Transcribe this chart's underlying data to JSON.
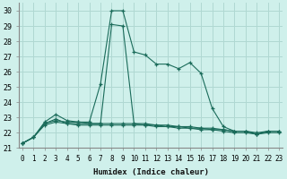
{
  "xlabel": "Humidex (Indice chaleur)",
  "bg_color": "#cff0eb",
  "grid_color": "#b0d8d2",
  "line_color": "#1a6b5a",
  "xlim": [
    0,
    23
  ],
  "ylim": [
    21,
    30.5
  ],
  "yticks": [
    21,
    22,
    23,
    24,
    25,
    26,
    27,
    28,
    29,
    30
  ],
  "xticks": [
    0,
    1,
    2,
    3,
    4,
    5,
    6,
    7,
    8,
    9,
    10,
    11,
    12,
    13,
    14,
    15,
    16,
    17,
    18,
    19,
    20,
    21,
    22,
    23
  ],
  "series": [
    [
      21.3,
      21.7,
      22.7,
      23.2,
      22.8,
      22.7,
      22.7,
      25.2,
      30.0,
      30.0,
      27.3,
      27.1,
      26.5,
      26.5,
      26.2,
      26.6,
      25.9,
      23.6,
      22.4,
      22.1,
      22.1,
      21.9,
      22.1,
      22.1
    ],
    [
      21.3,
      21.7,
      22.6,
      22.9,
      22.6,
      22.6,
      22.6,
      22.6,
      29.1,
      29.0,
      22.6,
      22.5,
      22.5,
      22.4,
      22.4,
      22.3,
      22.3,
      22.2,
      22.2,
      22.1,
      22.1,
      21.9,
      22.1,
      22.1
    ],
    [
      21.3,
      21.7,
      22.6,
      22.8,
      22.7,
      22.7,
      22.6,
      22.6,
      22.6,
      22.6,
      22.6,
      22.6,
      22.5,
      22.5,
      22.4,
      22.4,
      22.3,
      22.3,
      22.2,
      22.1,
      22.1,
      22.0,
      22.1,
      22.1
    ],
    [
      21.3,
      21.7,
      22.5,
      22.7,
      22.6,
      22.5,
      22.5,
      22.5,
      22.5,
      22.5,
      22.5,
      22.5,
      22.4,
      22.4,
      22.3,
      22.3,
      22.2,
      22.2,
      22.1,
      22.0,
      22.0,
      21.9,
      22.0,
      22.0
    ]
  ]
}
